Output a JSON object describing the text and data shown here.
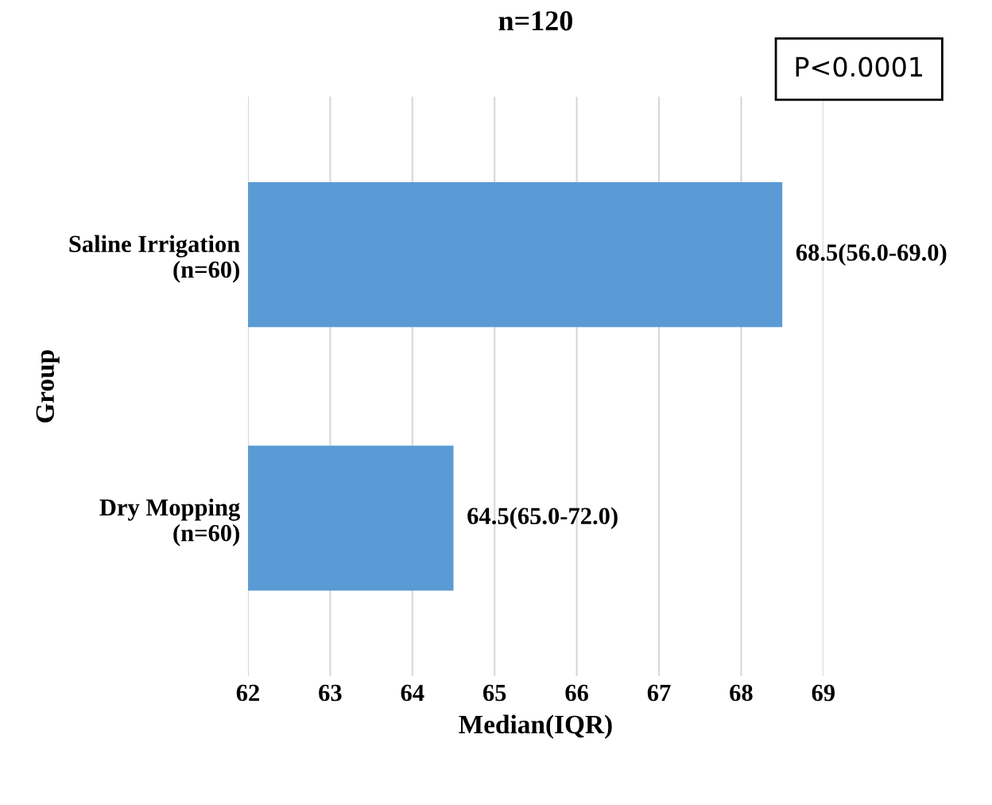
{
  "chart_data": {
    "type": "bar",
    "orientation": "horizontal",
    "title": "n=120",
    "xlabel": "Median(IQR)",
    "ylabel": "Group",
    "categories": [
      "Saline Irrigation\n(n=60)",
      "Dry Mopping\n(n=60)"
    ],
    "values": [
      68.5,
      64.5
    ],
    "value_labels": [
      "68.5(56.0-69.0)",
      "64.5(65.0-72.0)"
    ],
    "color": "#5b9bd5",
    "xlim": [
      62,
      69
    ],
    "xticks": [
      62,
      63,
      64,
      65,
      66,
      67,
      68,
      69
    ],
    "grid": "x",
    "annotations": [
      "P<0.0001"
    ]
  }
}
